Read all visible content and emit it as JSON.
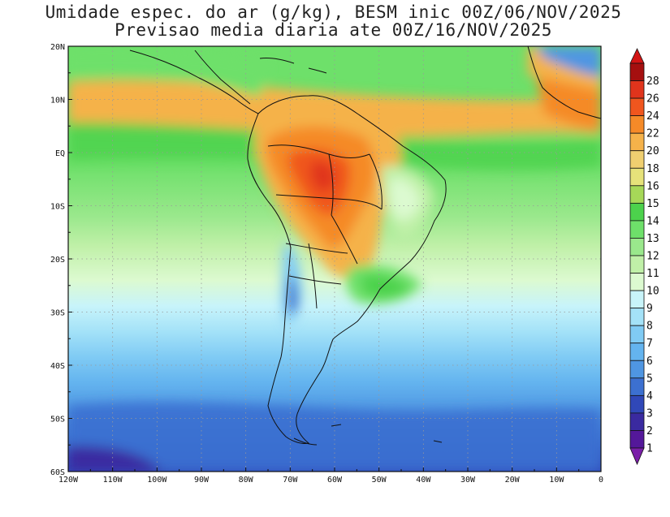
{
  "title_line1": "Umidade espec. do ar (g/kg), BESM inic 00Z/06/NOV/2025",
  "title_line2": "Previsao media diaria ate 00Z/16/NOV/2025",
  "map": {
    "lon_range": [
      -120,
      0
    ],
    "lat_range": [
      -60,
      20
    ],
    "x_ticks": [
      {
        "value": -120,
        "label": "120W"
      },
      {
        "value": -110,
        "label": "110W"
      },
      {
        "value": -100,
        "label": "100W"
      },
      {
        "value": -90,
        "label": "90W"
      },
      {
        "value": -80,
        "label": "80W"
      },
      {
        "value": -70,
        "label": "70W"
      },
      {
        "value": -60,
        "label": "60W"
      },
      {
        "value": -50,
        "label": "50W"
      },
      {
        "value": -40,
        "label": "40W"
      },
      {
        "value": -30,
        "label": "30W"
      },
      {
        "value": -20,
        "label": "20W"
      },
      {
        "value": -10,
        "label": "10W"
      },
      {
        "value": 0,
        "label": "0"
      }
    ],
    "y_ticks": [
      {
        "value": 20,
        "label": "20N"
      },
      {
        "value": 10,
        "label": "10N"
      },
      {
        "value": 0,
        "label": "EQ"
      },
      {
        "value": -10,
        "label": "10S"
      },
      {
        "value": -20,
        "label": "20S"
      },
      {
        "value": -30,
        "label": "30S"
      },
      {
        "value": -40,
        "label": "40S"
      },
      {
        "value": -50,
        "label": "50S"
      },
      {
        "value": -60,
        "label": "60S"
      }
    ],
    "grid": true
  },
  "colorbar": {
    "levels": [
      {
        "label": "28",
        "color": "#a50f0f"
      },
      {
        "label": "26",
        "color": "#e0341c"
      },
      {
        "label": "24",
        "color": "#f0561e"
      },
      {
        "label": "22",
        "color": "#f58a28"
      },
      {
        "label": "20",
        "color": "#f5b24a"
      },
      {
        "label": "18",
        "color": "#f0cf70"
      },
      {
        "label": "16",
        "color": "#e6e27a"
      },
      {
        "label": "15",
        "color": "#a6d858"
      },
      {
        "label": "14",
        "color": "#4cd24c"
      },
      {
        "label": "13",
        "color": "#6ee06a"
      },
      {
        "label": "12",
        "color": "#9ae88c"
      },
      {
        "label": "11",
        "color": "#c0f0a8"
      },
      {
        "label": "10",
        "color": "#dcfad0"
      },
      {
        "label": "9",
        "color": "#c8f4fa"
      },
      {
        "label": "8",
        "color": "#a4e2f8"
      },
      {
        "label": "7",
        "color": "#80cbf4"
      },
      {
        "label": "6",
        "color": "#64b4ef"
      },
      {
        "label": "5",
        "color": "#4f96e2"
      },
      {
        "label": "4",
        "color": "#3c70d0"
      },
      {
        "label": "3",
        "color": "#3048b8"
      },
      {
        "label": "2",
        "color": "#3a2aa0"
      },
      {
        "label": "1",
        "color": "#54189a"
      }
    ],
    "over_color": "#d21414",
    "under_color": "#7a1fa8"
  }
}
